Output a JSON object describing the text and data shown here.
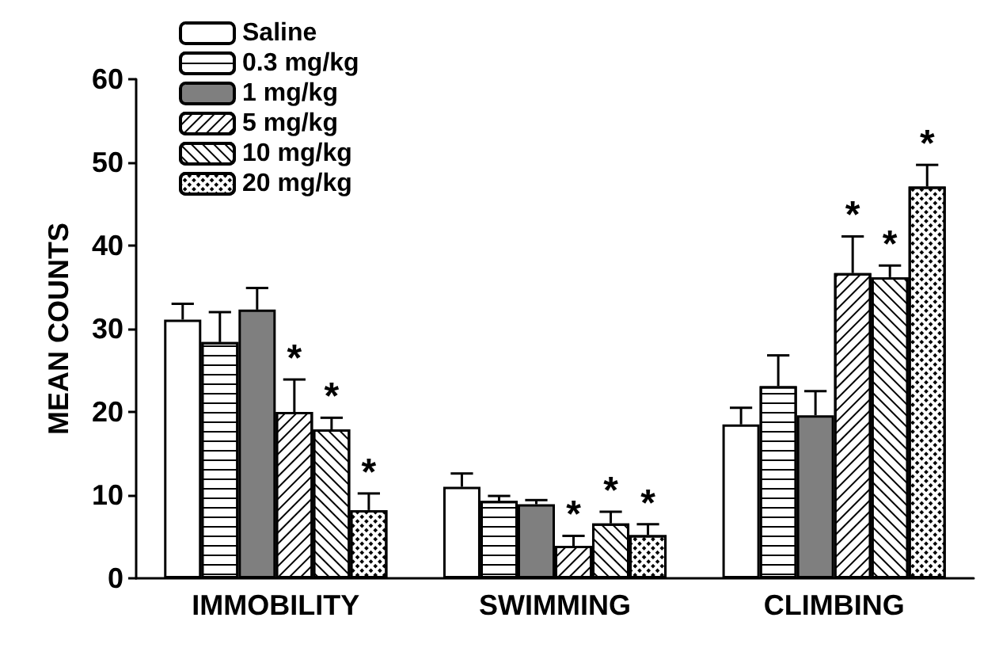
{
  "chart_data": {
    "type": "bar",
    "ylabel": "MEAN COUNTS",
    "categories": [
      "IMMOBILITY",
      "SWIMMING",
      "CLIMBING"
    ],
    "series": [
      {
        "name": "Saline",
        "color": "#ffffff",
        "values": [
          31.1,
          11.0,
          18.5
        ],
        "errors": [
          [
            31.1,
            33.0
          ],
          [
            11.0,
            12.6
          ],
          [
            18.5,
            20.5
          ]
        ]
      },
      {
        "name": "0.3 mg/kg",
        "color": "#ffffff",
        "values": [
          28.4,
          9.3,
          23.1
        ],
        "errors": [
          [
            28.4,
            32.0
          ],
          [
            9.3,
            9.9
          ],
          [
            23.1,
            26.8
          ]
        ]
      },
      {
        "name": "1 mg/kg",
        "color": "#7f7f7f",
        "values": [
          32.3,
          8.9,
          19.6
        ],
        "errors": [
          [
            32.3,
            34.9
          ],
          [
            8.9,
            9.4
          ],
          [
            19.6,
            22.5
          ]
        ]
      },
      {
        "name": "5 mg/kg",
        "color": "#ffffff",
        "values": [
          20.0,
          3.9,
          36.7
        ],
        "errors": [
          [
            20.0,
            23.9
          ],
          [
            3.9,
            5.1
          ],
          [
            36.7,
            41.1
          ]
        ],
        "value_labels": [
          "*",
          "*",
          "*"
        ]
      },
      {
        "name": "10 mg/kg",
        "color": "#ffffff",
        "values": [
          17.9,
          6.6,
          36.2
        ],
        "errors": [
          [
            17.9,
            19.3
          ],
          [
            6.6,
            8.0
          ],
          [
            36.2,
            37.6
          ]
        ],
        "value_labels": [
          "*",
          "*",
          "*"
        ]
      },
      {
        "name": "20 mg/kg",
        "color": "#ffffff",
        "values": [
          8.2,
          5.2,
          47.1
        ],
        "errors": [
          [
            8.2,
            10.2
          ],
          [
            5.2,
            6.5
          ],
          [
            47.1,
            49.7
          ]
        ],
        "value_labels": [
          "*",
          "*",
          "*"
        ]
      }
    ],
    "ylim": [
      0,
      60
    ],
    "yticks": [
      0,
      10,
      20,
      30,
      40,
      50,
      60
    ],
    "grid": false,
    "legend": "top left"
  }
}
